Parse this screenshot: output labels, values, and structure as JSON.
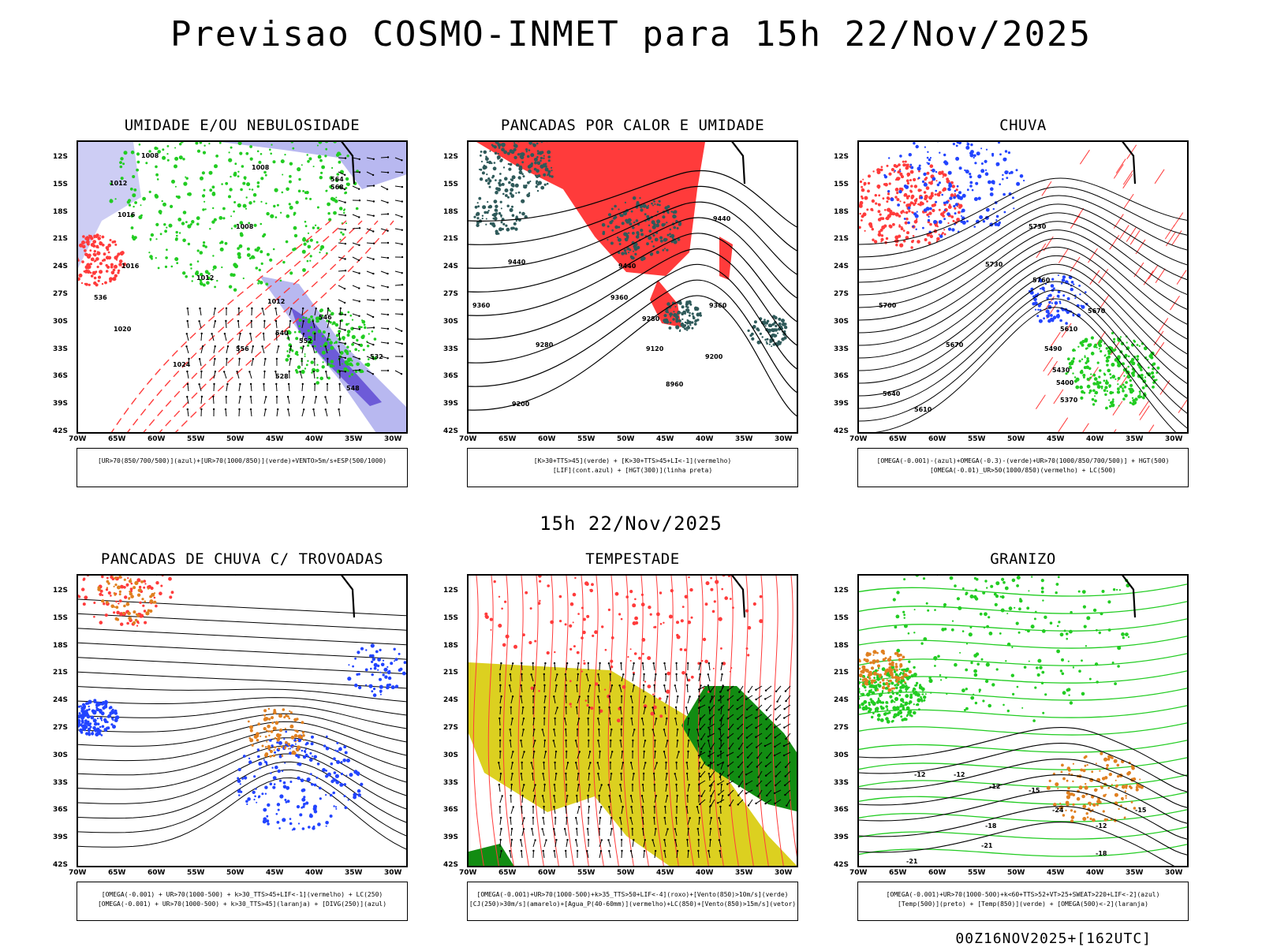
{
  "title": "Previsao COSMO-INMET  para 15h 22/Nov/2025",
  "mid_title": "15h 22/Nov/2025",
  "run_id": "00Z16NOV2025+[162UTC]",
  "lat_ticks": [
    "12S",
    "15S",
    "18S",
    "21S",
    "24S",
    "27S",
    "30S",
    "33S",
    "36S",
    "39S",
    "42S"
  ],
  "lon_ticks": [
    "70W",
    "65W",
    "60W",
    "55W",
    "50W",
    "45W",
    "40W",
    "35W",
    "30W"
  ],
  "panels": [
    {
      "title": "UMIDADE E/OU NEBULOSIDADE",
      "legend": [
        "[UR>70(850/700/500)](azul)+[UR>70(1000/850)](verde)+VENTO>5m/s+ESP(500/1000)"
      ],
      "contour_labels": [
        "1008",
        "1012",
        "1008",
        "1016",
        "1012",
        "1008",
        "1020",
        "1024",
        "1012",
        "1016",
        "548",
        "556",
        "552",
        "546",
        "540",
        "564",
        "532",
        "528",
        "536",
        "568"
      ]
    },
    {
      "title": "PANCADAS POR CALOR E UMIDADE",
      "legend": [
        "[K>30+TTS>45](verde) + [K>30+TTS>45+LI<-1](vermelho)",
        "[LIF](cont.azul) + [HGT(300)](linha preta)"
      ],
      "contour_labels": [
        "9440",
        "9440",
        "9440",
        "9360",
        "9360",
        "9360",
        "9280",
        "9280",
        "9200",
        "9200",
        "9120",
        "8960"
      ]
    },
    {
      "title": "CHUVA",
      "legend": [
        "[OMEGA(-0.001)-(azul)+OMEGA(-0.3)-(verde)+UR>70(1000/850/700/500)] + HGT(500)",
        "[OMEGA(-0.01)_UR>50(1000/850)(vermelho) + LC(500)"
      ],
      "contour_labels": [
        "5730",
        "5730",
        "5760",
        "5700",
        "5670",
        "5610",
        "5670",
        "5490",
        "5430",
        "5400",
        "5370",
        "5640",
        "5610"
      ]
    },
    {
      "title": "PANCADAS DE CHUVA C/ TROVOADAS",
      "legend": [
        "[OMEGA(-0.001) + UR>70(1000-500) + k>30_TTS>45+LIF<-1](vermelho) + LC(250)",
        "[OMEGA(-0.001) + UR>70(1000-500) + k>30_TTS>45](laranja) + [DIVG(250)](azul)"
      ],
      "contour_labels": []
    },
    {
      "title": "TEMPESTADE",
      "legend": [
        "[OMEGA(-0.001)+UR>70(1000-500)+k>35_TTS>50+LIF<-4](roxo)+[Vento(850)>10m/s](verde)",
        "[CJ(250)>30m/s](amarelo)+[Agua_P(40-60mm)](vermelho)+LC(850)+[Vento(850)>15m/s](vetor)"
      ],
      "contour_labels": []
    },
    {
      "title": "GRANIZO",
      "legend": [
        "[OMEGA(-0.001)+UR>70(1000-500)+k<60+TTS>52+VT>25+SWEAT>220+LIF<-2](azul)",
        "[Temp(500)](preto) + [Temp(850)](verde) + [OMEGA(500)<-2](laranja)"
      ],
      "contour_labels": [
        "-12",
        "-12",
        "-12",
        "-15",
        "-18",
        "-21",
        "-24",
        "-15",
        "-12",
        "-18",
        "-21"
      ]
    }
  ],
  "colors": {
    "red": "#ff3b3b",
    "green": "#22cc22",
    "blue": "#2244ff",
    "lavender": "#b8b8f0",
    "darkteal": "#2f5a5a",
    "yellow": "#dcd020",
    "orange": "#e08020",
    "dkgreen": "#128c12"
  }
}
